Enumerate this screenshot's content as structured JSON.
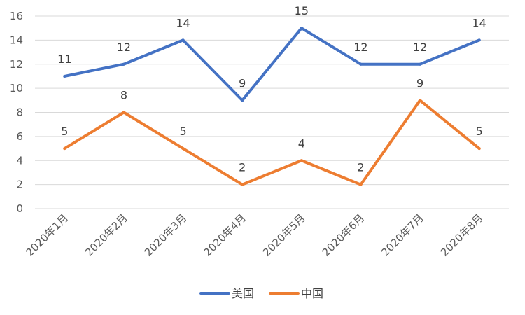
{
  "chart_data": {
    "type": "line",
    "title": "",
    "xlabel": "",
    "ylabel": "",
    "categories": [
      "2020年1月",
      "2020年2月",
      "2020年3月",
      "2020年4月",
      "2020年5月",
      "2020年6月",
      "2020年7月",
      "2020年8月"
    ],
    "ylim": [
      0,
      16
    ],
    "yticks": [
      0,
      2,
      4,
      6,
      8,
      10,
      12,
      14,
      16
    ],
    "grid": true,
    "legend_position": "bottom",
    "data_labels": true,
    "series": [
      {
        "name": "美国",
        "color": "#4472C4",
        "values": [
          11,
          12,
          14,
          9,
          15,
          12,
          12,
          14
        ]
      },
      {
        "name": "中国",
        "color": "#ED7D31",
        "values": [
          5,
          8,
          5,
          2,
          4,
          2,
          9,
          5
        ]
      }
    ]
  }
}
